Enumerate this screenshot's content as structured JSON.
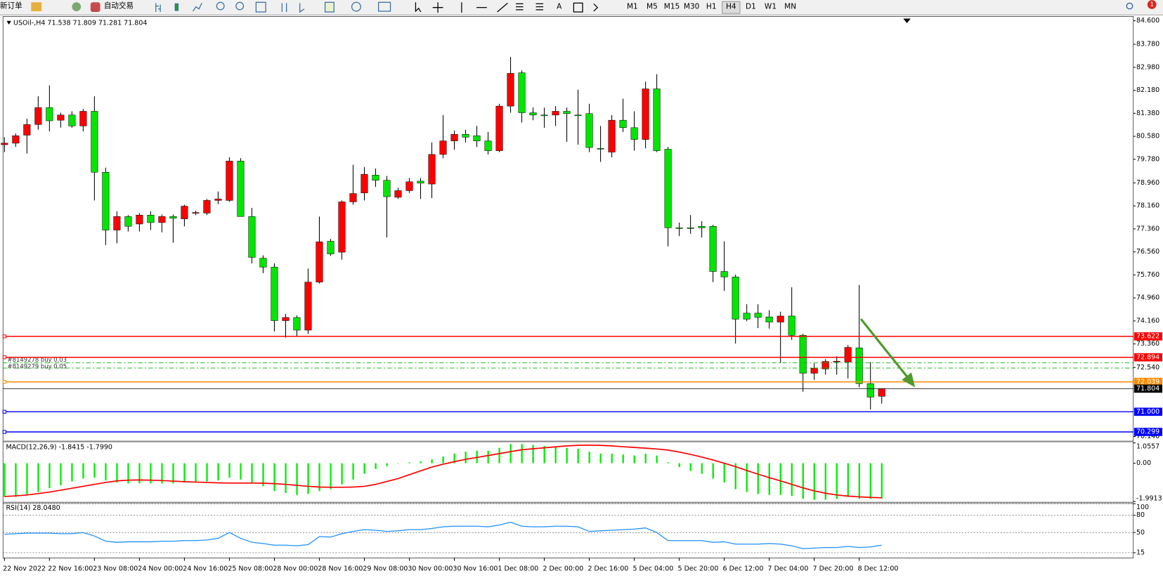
{
  "toolbar": {
    "new_order": "新订单",
    "auto_trading": "自动交易",
    "text_tool": "A",
    "timeframes": [
      "M1",
      "M5",
      "M15",
      "M30",
      "H1",
      "H4",
      "D1",
      "W1",
      "MN"
    ],
    "active_timeframe": "H4",
    "alert_count": "1"
  },
  "chart_data": [
    {
      "type": "candlestick",
      "title": "USOil-,H4 71.538 71.809 71.281 71.804",
      "categories": [
        "22 Nov 2022",
        null,
        null,
        null,
        "22 Nov 16:00",
        null,
        null,
        null,
        "23 Nov 08:00",
        null,
        null,
        null,
        "24 Nov 00:00",
        null,
        null,
        null,
        "24 Nov 16:00",
        null,
        null,
        null,
        "25 Nov 08:00",
        null,
        null,
        null,
        "28 Nov 00:00",
        null,
        null,
        null,
        "28 Nov 16:00",
        null,
        null,
        null,
        "29 Nov 08:00",
        null,
        null,
        null,
        "30 Nov 00:00",
        null,
        null,
        null,
        "30 Nov 16:00",
        null,
        null,
        null,
        "1 Dec 08:00",
        null,
        null,
        null,
        "2 Dec 00:00",
        null,
        null,
        null,
        "2 Dec 16:00",
        null,
        null,
        null,
        "5 Dec 04:00",
        null,
        null,
        null,
        "5 Dec 20:00",
        null,
        null,
        null,
        "6 Dec 12:00",
        null,
        null,
        null,
        "7 Dec 04:00",
        null,
        null,
        null,
        "7 Dec 20:00",
        null,
        null,
        null,
        "8 Dec 12:00",
        null,
        null
      ],
      "open": [
        80.29,
        80.34,
        80.62,
        80.99,
        81.58,
        81.14,
        81.32,
        80.94,
        81.45,
        79.33,
        77.32,
        77.79,
        77.53,
        77.84,
        77.58,
        77.79,
        77.71,
        77.91,
        77.91,
        78.35,
        78.35,
        79.72,
        77.79,
        76.34,
        76.03,
        74.17,
        74.28,
        73.84,
        75.51,
        76.93,
        76.55,
        78.3,
        78.61,
        79.23,
        79.05,
        78.46,
        78.69,
        79.02,
        78.92,
        79.95,
        80.42,
        80.65,
        80.6,
        80.42,
        80.08,
        81.63,
        82.79,
        81.4,
        81.32,
        81.32,
        81.45,
        81.32,
        81.37,
        80.16,
        80.03,
        81.14,
        80.88,
        80.47,
        82.23,
        80.13,
        77.4,
        77.4,
        77.45,
        77.45,
        75.88,
        75.69,
        74.43,
        74.43,
        74.3,
        74.12,
        74.33,
        73.66,
        72.34,
        72.49,
        72.75,
        72.73,
        73.22,
        71.98,
        71.538
      ],
      "high": [
        80.55,
        80.68,
        81.19,
        81.97,
        82.35,
        81.4,
        81.45,
        81.53,
        81.97,
        79.49,
        77.97,
        77.84,
        77.91,
        77.97,
        77.86,
        77.86,
        78.2,
        77.99,
        78.4,
        78.66,
        79.85,
        79.82,
        78.09,
        76.44,
        76.16,
        74.4,
        74.35,
        75.98,
        77.79,
        77.01,
        78.35,
        79.59,
        79.51,
        79.46,
        79.2,
        78.79,
        79.13,
        79.13,
        80.37,
        81.32,
        80.78,
        80.81,
        80.94,
        80.73,
        81.71,
        83.34,
        82.87,
        81.58,
        81.58,
        81.63,
        81.58,
        82.2,
        81.71,
        80.94,
        81.32,
        81.89,
        81.45,
        82.48,
        82.74,
        80.21,
        77.58,
        77.84,
        77.63,
        77.5,
        76.93,
        75.77,
        74.74,
        74.74,
        74.53,
        74.48,
        75.33,
        73.71,
        72.68,
        72.83,
        72.93,
        73.32,
        75.41,
        72.73,
        71.809
      ],
      "low": [
        80.03,
        80.21,
        79.98,
        80.81,
        80.75,
        80.88,
        80.88,
        80.75,
        78.35,
        76.8,
        76.86,
        77.27,
        77.27,
        77.32,
        77.24,
        76.88,
        77.45,
        77.84,
        77.84,
        78.22,
        78.3,
        77.79,
        76.16,
        75.82,
        73.79,
        73.58,
        73.63,
        73.71,
        75.46,
        76.42,
        76.29,
        78.2,
        78.35,
        78.82,
        77.06,
        78.4,
        78.61,
        78.4,
        78.43,
        79.82,
        80.11,
        80.37,
        80.21,
        79.95,
        80.03,
        81.4,
        81.06,
        81.14,
        80.88,
        80.94,
        80.39,
        80.29,
        80.03,
        79.69,
        79.85,
        80.73,
        80.08,
        80.16,
        80.03,
        76.75,
        77.11,
        77.19,
        77.06,
        75.51,
        75.2,
        73.37,
        74.15,
        73.91,
        73.89,
        72.7,
        73.5,
        71.7,
        72.11,
        72.29,
        72.29,
        72.16,
        71.85,
        71.08,
        71.281
      ],
      "close": [
        80.34,
        80.6,
        80.99,
        81.58,
        81.12,
        81.32,
        80.94,
        81.45,
        79.33,
        77.32,
        77.79,
        77.45,
        77.84,
        77.58,
        77.79,
        77.73,
        78.15,
        77.93,
        78.35,
        78.4,
        79.72,
        77.79,
        76.37,
        76.03,
        74.17,
        74.28,
        73.84,
        75.51,
        76.91,
        76.49,
        78.3,
        78.59,
        79.26,
        79.05,
        78.48,
        78.69,
        79.0,
        78.95,
        79.95,
        80.42,
        80.65,
        80.55,
        80.42,
        80.08,
        81.63,
        82.77,
        81.4,
        81.32,
        81.31,
        81.45,
        81.37,
        81.31,
        80.19,
        80.15,
        81.14,
        80.88,
        80.47,
        82.23,
        80.08,
        77.4,
        77.39,
        77.39,
        77.4,
        75.88,
        75.69,
        74.22,
        74.22,
        74.28,
        74.12,
        74.33,
        73.66,
        72.34,
        72.52,
        72.75,
        72.76,
        73.24,
        71.98,
        71.51,
        71.804
      ],
      "up_color": "#ff0000",
      "down_color": "#00e600",
      "ylim": [
        70.02,
        84.75
      ],
      "yticks": [
        {
          "value": 84.6,
          "label": "84.600"
        },
        {
          "value": 83.78,
          "label": "83.780"
        },
        {
          "value": 82.98,
          "label": "82.980"
        },
        {
          "value": 82.18,
          "label": "82.180"
        },
        {
          "value": 81.38,
          "label": "81.380"
        },
        {
          "value": 80.58,
          "label": "80.580"
        },
        {
          "value": 79.78,
          "label": "79.780"
        },
        {
          "value": 78.96,
          "label": "78.960"
        },
        {
          "value": 78.16,
          "label": "78.160"
        },
        {
          "value": 77.36,
          "label": "77.360"
        },
        {
          "value": 76.56,
          "label": "76.560"
        },
        {
          "value": 75.76,
          "label": "75.760"
        },
        {
          "value": 74.96,
          "label": "74.960"
        },
        {
          "value": 74.16,
          "label": "74.160"
        },
        {
          "value": 73.36,
          "label": "73.360"
        },
        {
          "value": 72.54,
          "label": "72.540"
        },
        {
          "value": 70.14,
          "label": "70.140"
        }
      ],
      "levels": [
        {
          "value": 73.622,
          "color": "#ff0000"
        },
        {
          "value": 72.894,
          "color": "#ff0000"
        },
        {
          "value": 72.039,
          "color": "#ff8c00"
        },
        {
          "value": 71.804,
          "color": "#000000"
        },
        {
          "value": 71,
          "label": "71.000",
          "color": "#0000ff"
        },
        {
          "value": 70.299,
          "color": "#0000ff"
        }
      ],
      "order_lines": [
        {
          "name": "#8149278 buy 0.03",
          "value": 72.7,
          "color": "#00b000"
        },
        {
          "name": "#8149279 buy 0.05",
          "value": 72.52,
          "color": "#00b000"
        }
      ]
    },
    {
      "type": "macd",
      "title": "MACD(12,26,9) -1.8415 -1.7990",
      "ylim": [
        -1.9913,
        1.0557
      ],
      "yticks": [
        1.0557,
        {
          "value": 0,
          "label": "0.00"
        },
        -1.9913
      ],
      "series": [
        {
          "style": "histogram",
          "color": "#00ee00",
          "values": [
            -1.75,
            -1.75,
            -1.65,
            -1.5,
            -1.3,
            -1.15,
            -0.95,
            -0.8,
            -0.75,
            -0.9,
            -1.0,
            -1.05,
            -1.05,
            -1.05,
            -1.05,
            -1.05,
            -1.0,
            -1.0,
            -0.95,
            -0.9,
            -0.75,
            -0.85,
            -1.05,
            -1.2,
            -1.45,
            -1.55,
            -1.65,
            -1.6,
            -1.45,
            -1.35,
            -1.1,
            -0.85,
            -0.55,
            -0.3,
            -0.15,
            -0.02,
            0.05,
            0.1,
            0.2,
            0.35,
            0.5,
            0.6,
            0.65,
            0.65,
            0.8,
            1.0,
            1.0,
            0.95,
            0.9,
            0.85,
            0.8,
            0.75,
            0.6,
            0.5,
            0.5,
            0.45,
            0.4,
            0.5,
            0.4,
            0.05,
            -0.2,
            -0.4,
            -0.55,
            -0.8,
            -1.0,
            -1.35,
            -1.5,
            -1.6,
            -1.65,
            -1.65,
            -1.7,
            -1.85,
            -1.9,
            -1.9,
            -1.85,
            -1.75,
            -1.85,
            -1.85,
            -1.8415
          ]
        },
        {
          "style": "line",
          "color": "#ff0000",
          "values": [
            -1.73,
            -1.7,
            -1.65,
            -1.58,
            -1.5,
            -1.4,
            -1.3,
            -1.2,
            -1.1,
            -1.0,
            -0.92,
            -0.88,
            -0.87,
            -0.88,
            -0.9,
            -0.93,
            -0.96,
            -0.98,
            -1.0,
            -1.02,
            -1.03,
            -1.03,
            -1.03,
            -1.04,
            -1.06,
            -1.1,
            -1.15,
            -1.2,
            -1.24,
            -1.25,
            -1.25,
            -1.24,
            -1.2,
            -1.1,
            -0.95,
            -0.8,
            -0.6,
            -0.4,
            -0.2,
            -0.05,
            0.08,
            0.2,
            0.3,
            0.4,
            0.5,
            0.6,
            0.7,
            0.75,
            0.8,
            0.85,
            0.9,
            0.93,
            0.94,
            0.93,
            0.9,
            0.86,
            0.82,
            0.78,
            0.74,
            0.68,
            0.58,
            0.46,
            0.32,
            0.17,
            0.0,
            -0.18,
            -0.38,
            -0.57,
            -0.75,
            -0.92,
            -1.1,
            -1.28,
            -1.44,
            -1.56,
            -1.65,
            -1.71,
            -1.75,
            -1.78,
            -1.799
          ]
        }
      ]
    },
    {
      "type": "line",
      "title": "RSI(14) 28.0480",
      "ylim": [
        6,
        100
      ],
      "yticks": [
        100,
        80,
        50,
        15
      ],
      "color": "#1e90ff",
      "values": [
        47,
        48,
        49,
        49,
        49,
        48,
        48,
        50,
        44,
        35,
        33,
        34,
        34,
        34,
        35,
        35,
        36,
        36,
        37,
        40,
        50,
        40,
        33,
        31,
        28,
        28,
        27,
        29,
        43,
        42,
        48,
        52,
        55,
        54,
        52,
        53,
        55,
        55,
        57,
        60,
        61,
        61,
        61,
        60,
        63,
        68,
        61,
        60,
        60,
        61,
        61,
        60,
        52,
        53,
        54,
        55,
        56,
        58,
        50,
        36,
        36,
        36,
        36,
        33,
        34,
        30,
        30,
        30,
        31,
        30,
        27,
        22,
        23,
        24,
        24,
        26,
        24,
        25,
        28.048
      ]
    }
  ]
}
